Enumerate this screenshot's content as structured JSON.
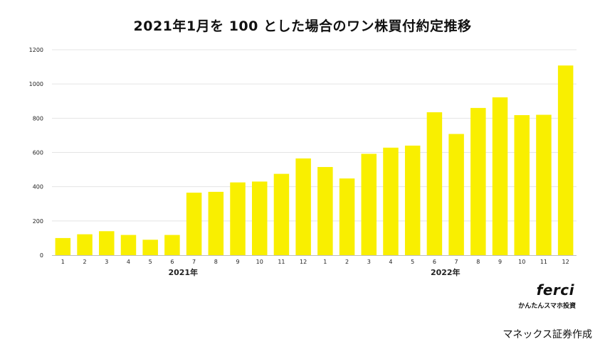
{
  "chart_data": {
    "type": "bar",
    "title": "2021年1月を 100 とした場合のワン株買付約定推移",
    "categories": [
      "1",
      "2",
      "3",
      "4",
      "5",
      "6",
      "7",
      "8",
      "9",
      "10",
      "11",
      "12",
      "1",
      "2",
      "3",
      "4",
      "5",
      "6",
      "7",
      "8",
      "9",
      "10",
      "11",
      "12"
    ],
    "groups": [
      {
        "label": "2021年",
        "start": 0,
        "end": 11
      },
      {
        "label": "2022年",
        "start": 12,
        "end": 23
      }
    ],
    "values": [
      100,
      122,
      140,
      118,
      90,
      118,
      365,
      370,
      425,
      430,
      475,
      565,
      515,
      448,
      592,
      628,
      640,
      835,
      708,
      860,
      922,
      818,
      820,
      1108
    ],
    "ylim": [
      0,
      1200
    ],
    "yticks": [
      0,
      200,
      400,
      600,
      800,
      1000,
      1200
    ],
    "grid": true,
    "colors": {
      "bar": "#f9ef00",
      "grid": "#e4e4e4",
      "axis": "#bdbdbd"
    }
  },
  "brand": {
    "logo": "ferci",
    "tagline": "かんたんスマホ投資"
  },
  "credit": "マネックス証券作成"
}
